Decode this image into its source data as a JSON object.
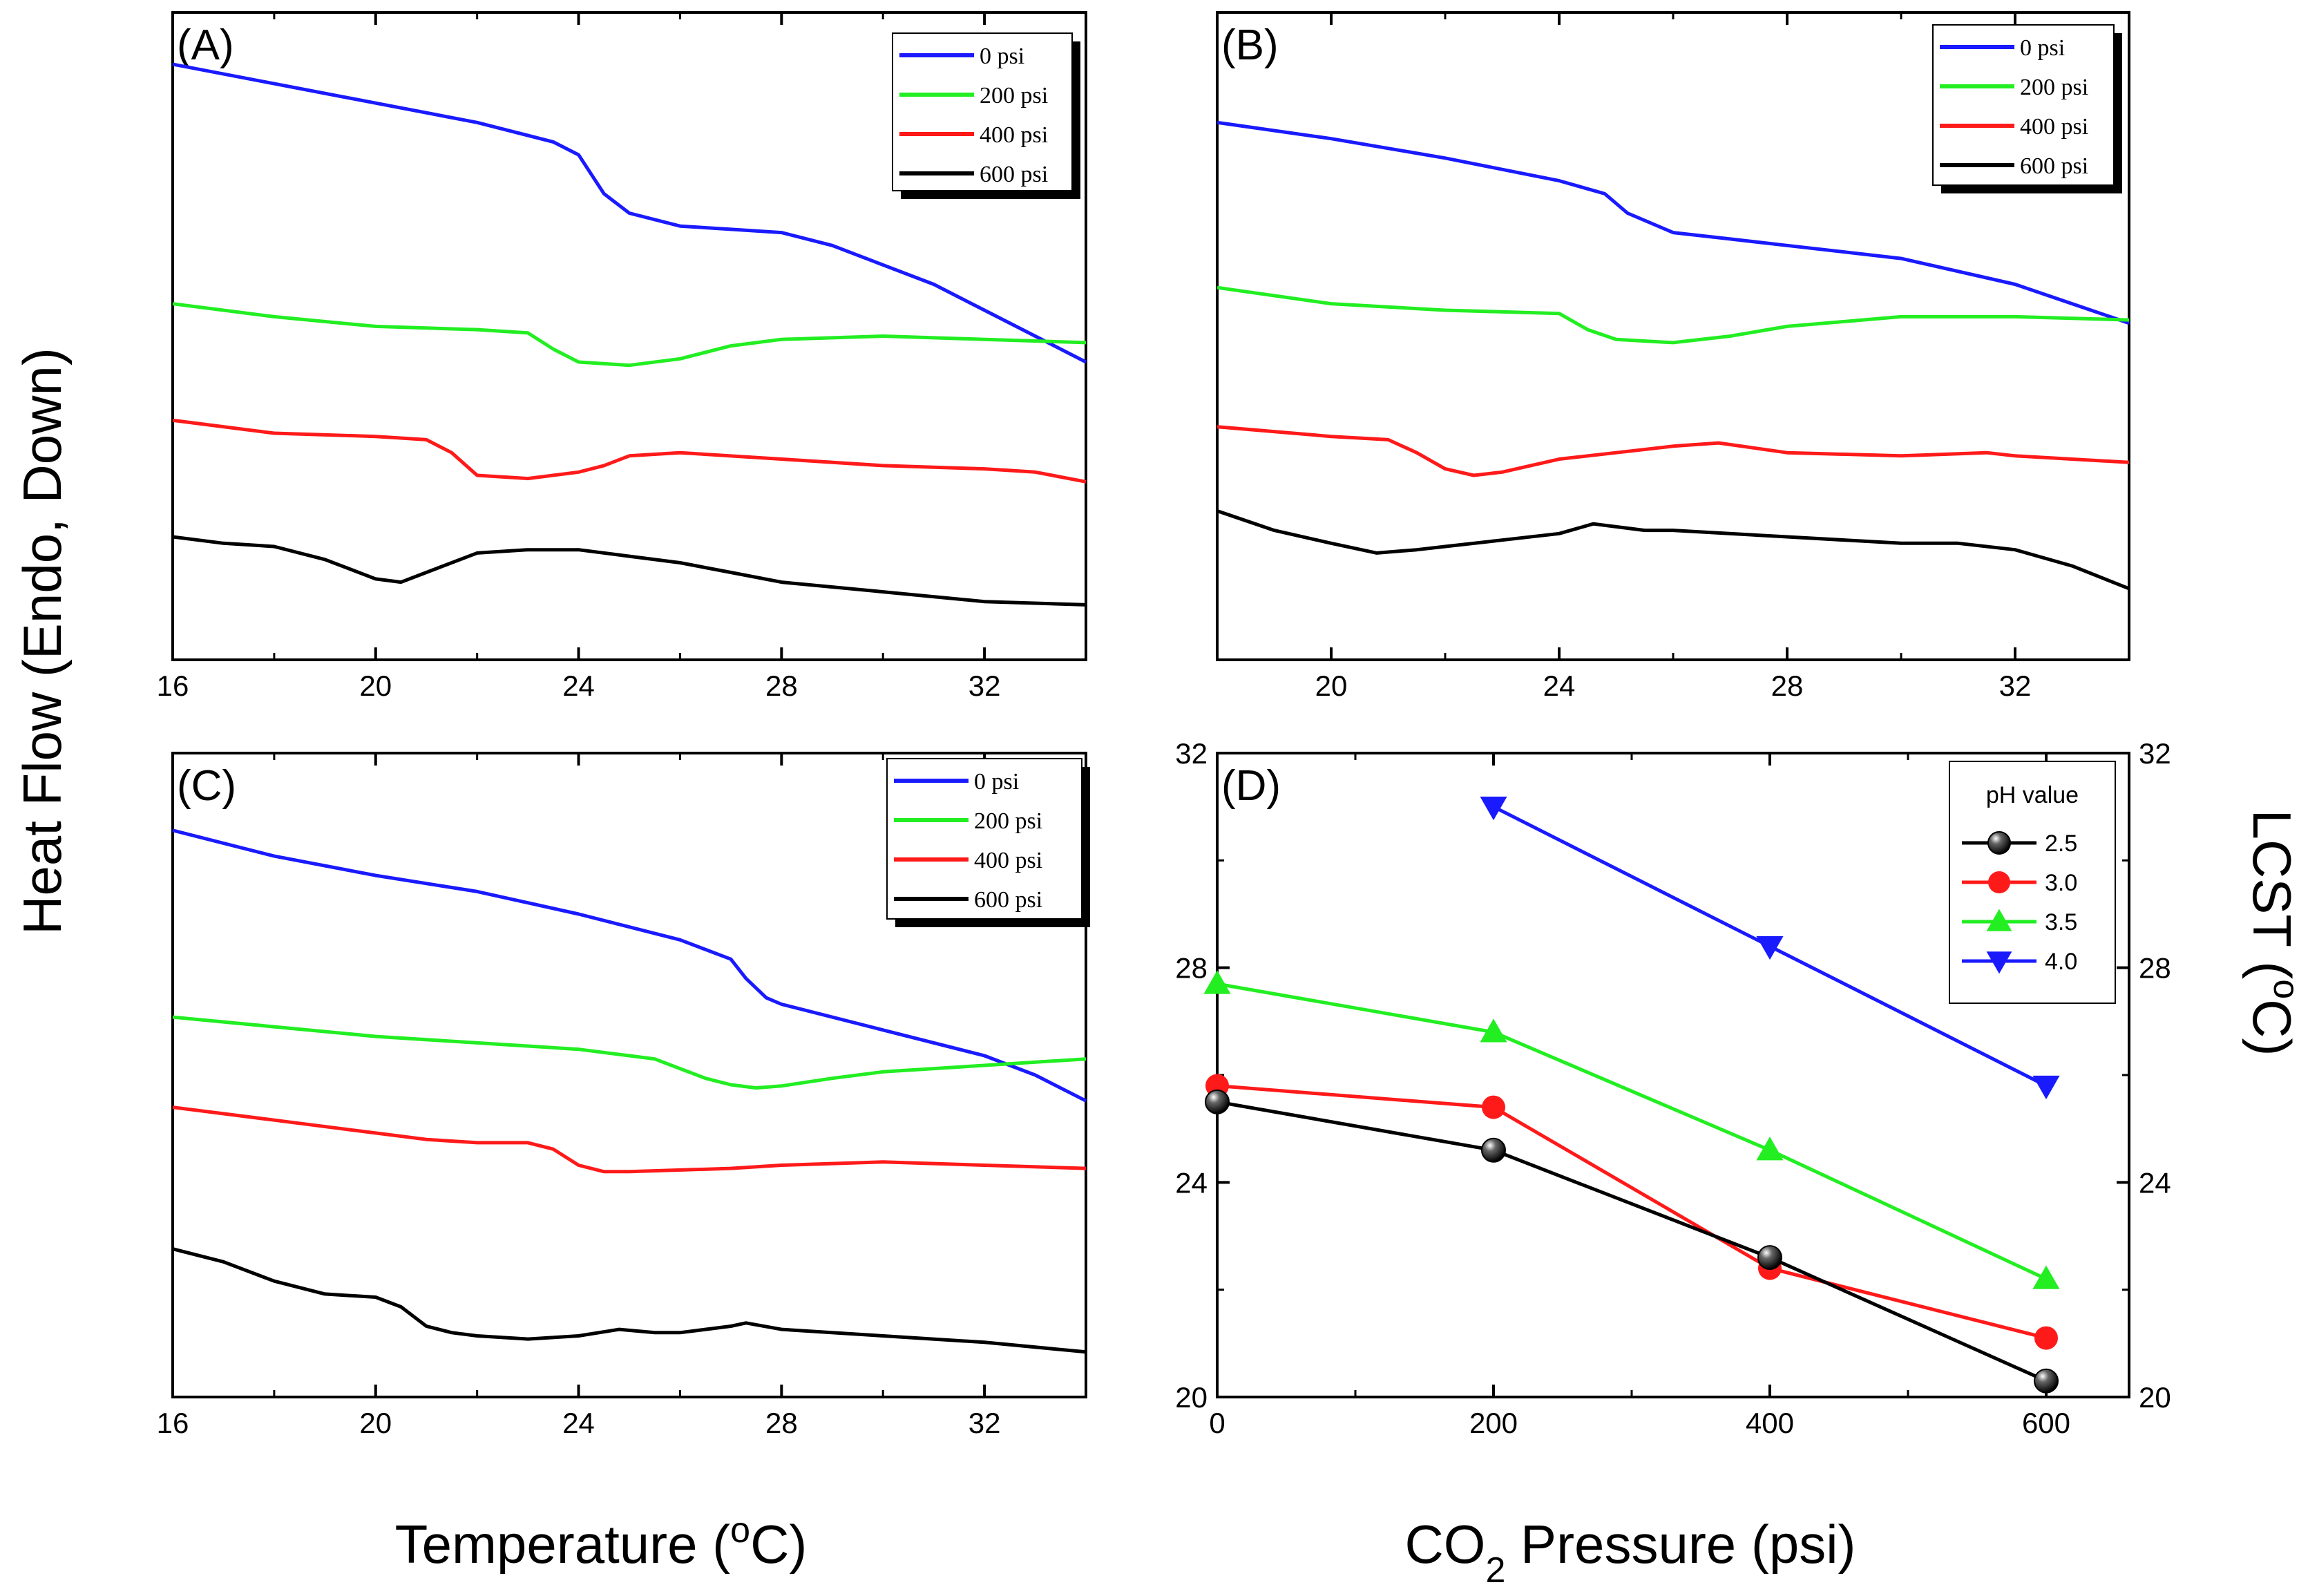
{
  "figure": {
    "ylabel": "Heat Flow (Endo, Down)",
    "xlabel_left": "Temperature (",
    "xlabel_left_sup": "o",
    "xlabel_left_end": "C)",
    "xlabel_right_a": "CO",
    "xlabel_right_sub": "2",
    "xlabel_right_b": " Pressure (psi)",
    "ylabel_right": "LCST (",
    "ylabel_right_sup": "o",
    "ylabel_right_end": "C)"
  },
  "colors": {
    "0 psi": "#1a1aff",
    "200 psi": "#22ee22",
    "400 psi": "#ff1a1a",
    "600 psi": "#000000"
  },
  "chart_data": [
    {
      "id": "A",
      "type": "line",
      "label": "(A)",
      "xlabel": "Temperature (°C)",
      "ylabel": "Heat Flow (Endo, Down)",
      "xlim": [
        16,
        34
      ],
      "xticks": [
        "16",
        "20",
        "24",
        "28",
        "32"
      ],
      "ylim": [
        0,
        100
      ],
      "legend": [
        "0 psi",
        "200 psi",
        "400 psi",
        "600 psi"
      ],
      "series": [
        {
          "name": "0 psi",
          "points": [
            [
              16,
              92
            ],
            [
              18,
              89
            ],
            [
              20,
              86
            ],
            [
              22,
              83
            ],
            [
              23.5,
              80
            ],
            [
              24,
              78
            ],
            [
              24.5,
              72
            ],
            [
              25,
              69
            ],
            [
              26,
              67
            ],
            [
              27,
              66.5
            ],
            [
              28,
              66
            ],
            [
              29,
              64
            ],
            [
              30,
              61
            ],
            [
              31,
              58
            ],
            [
              32,
              54
            ],
            [
              33,
              50
            ],
            [
              34,
              46
            ]
          ]
        },
        {
          "name": "200 psi",
          "points": [
            [
              16,
              55
            ],
            [
              18,
              53
            ],
            [
              20,
              51.5
            ],
            [
              22,
              51
            ],
            [
              23,
              50.5
            ],
            [
              23.5,
              48
            ],
            [
              24,
              46
            ],
            [
              25,
              45.5
            ],
            [
              26,
              46.5
            ],
            [
              27,
              48.5
            ],
            [
              28,
              49.5
            ],
            [
              30,
              50
            ],
            [
              32,
              49.5
            ],
            [
              34,
              49
            ]
          ]
        },
        {
          "name": "400 psi",
          "points": [
            [
              16,
              37
            ],
            [
              18,
              35
            ],
            [
              20,
              34.5
            ],
            [
              21,
              34
            ],
            [
              21.5,
              32
            ],
            [
              22,
              28.5
            ],
            [
              23,
              28
            ],
            [
              24,
              29
            ],
            [
              24.5,
              30
            ],
            [
              25,
              31.5
            ],
            [
              26,
              32
            ],
            [
              28,
              31
            ],
            [
              30,
              30
            ],
            [
              32,
              29.5
            ],
            [
              33,
              29
            ],
            [
              34,
              27.5
            ]
          ]
        },
        {
          "name": "600 psi",
          "points": [
            [
              16,
              19
            ],
            [
              17,
              18
            ],
            [
              18,
              17.5
            ],
            [
              19,
              15.5
            ],
            [
              20,
              12.5
            ],
            [
              20.5,
              12
            ],
            [
              21,
              13.5
            ],
            [
              22,
              16.5
            ],
            [
              23,
              17
            ],
            [
              24,
              17
            ],
            [
              25,
              16
            ],
            [
              26,
              15
            ],
            [
              27,
              13.5
            ],
            [
              28,
              12
            ],
            [
              30,
              10.5
            ],
            [
              32,
              9
            ],
            [
              34,
              8.5
            ]
          ]
        }
      ]
    },
    {
      "id": "B",
      "type": "line",
      "label": "(B)",
      "xlabel": "Temperature (°C)",
      "ylabel": "Heat Flow (Endo, Down)",
      "xlim": [
        18,
        34
      ],
      "xticks": [
        "20",
        "24",
        "28",
        "32"
      ],
      "ylim": [
        0,
        100
      ],
      "legend": [
        "0 psi",
        "200 psi",
        "400 psi",
        "600 psi"
      ],
      "series": [
        {
          "name": "0 psi",
          "points": [
            [
              18,
              83
            ],
            [
              20,
              80.5
            ],
            [
              22,
              77.5
            ],
            [
              24,
              74
            ],
            [
              24.8,
              72
            ],
            [
              25.2,
              69
            ],
            [
              26,
              66
            ],
            [
              27,
              65
            ],
            [
              28,
              64
            ],
            [
              30,
              62
            ],
            [
              32,
              58
            ],
            [
              33,
              55
            ],
            [
              34,
              52
            ]
          ]
        },
        {
          "name": "200 psi",
          "points": [
            [
              18,
              57.5
            ],
            [
              20,
              55
            ],
            [
              22,
              54
            ],
            [
              24,
              53.5
            ],
            [
              24.5,
              51
            ],
            [
              25,
              49.5
            ],
            [
              26,
              49
            ],
            [
              27,
              50
            ],
            [
              28,
              51.5
            ],
            [
              30,
              53
            ],
            [
              32,
              53
            ],
            [
              34,
              52.5
            ]
          ]
        },
        {
          "name": "400 psi",
          "points": [
            [
              18,
              36
            ],
            [
              20,
              34.5
            ],
            [
              21,
              34
            ],
            [
              21.5,
              32
            ],
            [
              22,
              29.5
            ],
            [
              22.5,
              28.5
            ],
            [
              23,
              29
            ],
            [
              24,
              31
            ],
            [
              25,
              32
            ],
            [
              26,
              33
            ],
            [
              26.8,
              33.5
            ],
            [
              28,
              32
            ],
            [
              30,
              31.5
            ],
            [
              31.5,
              32
            ],
            [
              32,
              31.5
            ],
            [
              34,
              30.5
            ]
          ]
        },
        {
          "name": "600 psi",
          "points": [
            [
              18,
              23
            ],
            [
              19,
              20
            ],
            [
              20,
              18
            ],
            [
              20.8,
              16.5
            ],
            [
              21.5,
              17
            ],
            [
              22,
              17.5
            ],
            [
              23,
              18.5
            ],
            [
              24,
              19.5
            ],
            [
              24.6,
              21
            ],
            [
              25.5,
              20
            ],
            [
              26,
              20
            ],
            [
              28,
              19
            ],
            [
              30,
              18
            ],
            [
              31,
              18
            ],
            [
              32,
              17
            ],
            [
              33,
              14.5
            ],
            [
              34,
              11
            ]
          ]
        }
      ]
    },
    {
      "id": "C",
      "type": "line",
      "label": "(C)",
      "xlabel": "Temperature (°C)",
      "ylabel": "Heat Flow (Endo, Down)",
      "xlim": [
        16,
        34
      ],
      "xticks": [
        "16",
        "20",
        "24",
        "28",
        "32"
      ],
      "ylim": [
        0,
        100
      ],
      "legend": [
        "0  psi",
        "200 psi",
        "400 psi",
        "600 psi"
      ],
      "series": [
        {
          "name": "0  psi",
          "points": [
            [
              16,
              88
            ],
            [
              18,
              84
            ],
            [
              20,
              81
            ],
            [
              22,
              78.5
            ],
            [
              24,
              75
            ],
            [
              26,
              71
            ],
            [
              27,
              68
            ],
            [
              27.3,
              65
            ],
            [
              27.7,
              62
            ],
            [
              28,
              61
            ],
            [
              30,
              57
            ],
            [
              32,
              53
            ],
            [
              33,
              50
            ],
            [
              34,
              46
            ]
          ]
        },
        {
          "name": "200 psi",
          "points": [
            [
              16,
              59
            ],
            [
              18,
              57.5
            ],
            [
              20,
              56
            ],
            [
              22,
              55
            ],
            [
              24,
              54
            ],
            [
              25,
              53
            ],
            [
              25.5,
              52.5
            ],
            [
              26,
              51
            ],
            [
              26.5,
              49.5
            ],
            [
              27,
              48.5
            ],
            [
              27.5,
              48
            ],
            [
              28,
              48.3
            ],
            [
              29,
              49.5
            ],
            [
              30,
              50.5
            ],
            [
              32,
              51.5
            ],
            [
              34,
              52.5
            ]
          ]
        },
        {
          "name": "400 psi",
          "points": [
            [
              16,
              45
            ],
            [
              18,
              43
            ],
            [
              20,
              41
            ],
            [
              21,
              40
            ],
            [
              22,
              39.5
            ],
            [
              23,
              39.5
            ],
            [
              23.5,
              38.5
            ],
            [
              24,
              36
            ],
            [
              24.5,
              35
            ],
            [
              25,
              35
            ],
            [
              27,
              35.5
            ],
            [
              28,
              36
            ],
            [
              30,
              36.5
            ],
            [
              32,
              36
            ],
            [
              34,
              35.5
            ]
          ]
        },
        {
          "name": "600 psi",
          "points": [
            [
              16,
              23
            ],
            [
              17,
              21
            ],
            [
              18,
              18
            ],
            [
              19,
              16
            ],
            [
              20,
              15.5
            ],
            [
              20.5,
              14
            ],
            [
              21,
              11
            ],
            [
              21.5,
              10
            ],
            [
              22,
              9.5
            ],
            [
              23,
              9
            ],
            [
              24,
              9.5
            ],
            [
              24.8,
              10.5
            ],
            [
              25.5,
              10
            ],
            [
              26,
              10
            ],
            [
              27,
              11
            ],
            [
              27.3,
              11.5
            ],
            [
              28,
              10.5
            ],
            [
              30,
              9.5
            ],
            [
              32,
              8.5
            ],
            [
              34,
              7
            ]
          ]
        }
      ]
    },
    {
      "id": "D",
      "type": "line",
      "label": "(D)",
      "xlabel": "CO2 Pressure (psi)",
      "ylabel": "LCST (°C)",
      "xlim": [
        0,
        660
      ],
      "xticks": [
        "0",
        "200",
        "400",
        "600"
      ],
      "ylim": [
        20,
        32
      ],
      "yticks": [
        "20",
        "24",
        "28",
        "32"
      ],
      "legend_title": "pH value",
      "series": [
        {
          "name": "2.5",
          "color": "#000000",
          "marker": "sphere",
          "x": [
            0,
            200,
            400,
            600
          ],
          "y": [
            25.5,
            24.6,
            22.6,
            20.3
          ]
        },
        {
          "name": "3.0",
          "color": "#ff1a1a",
          "marker": "circle",
          "x": [
            0,
            200,
            400,
            600
          ],
          "y": [
            25.8,
            25.4,
            22.4,
            21.1
          ]
        },
        {
          "name": "3.5",
          "color": "#22ee22",
          "marker": "triangle-up",
          "x": [
            0,
            200,
            400,
            600
          ],
          "y": [
            27.7,
            26.8,
            24.6,
            22.2
          ]
        },
        {
          "name": "4.0",
          "color": "#1a1aff",
          "marker": "triangle-down",
          "x": [
            200,
            400,
            600
          ],
          "y": [
            31.0,
            28.4,
            25.8
          ]
        }
      ]
    }
  ]
}
